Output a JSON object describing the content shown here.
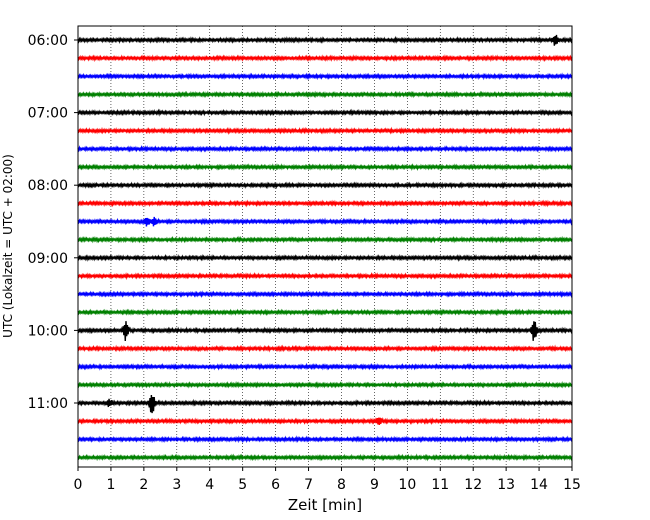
{
  "chart_data": {
    "type": "line",
    "title": "",
    "xlabel": "Zeit  [min]",
    "ylabel": "UTC (Lokalzeit = UTC + 02:00)",
    "xlim": [
      0,
      15
    ],
    "x_ticks": [
      0,
      1,
      2,
      3,
      4,
      5,
      6,
      7,
      8,
      9,
      10,
      11,
      12,
      13,
      14,
      15
    ],
    "y_ticks": [
      "06:00",
      "07:00",
      "08:00",
      "09:00",
      "10:00",
      "11:00"
    ],
    "grid": {
      "vertical": true,
      "horizontal": false,
      "style": "dotted"
    },
    "trace_colors": [
      "#000000",
      "#ff0000",
      "#0000ff",
      "#008000"
    ],
    "traces": [
      {
        "start": "06:00",
        "color": "#000000"
      },
      {
        "start": "06:15",
        "color": "#ff0000"
      },
      {
        "start": "06:30",
        "color": "#0000ff"
      },
      {
        "start": "06:45",
        "color": "#008000"
      },
      {
        "start": "07:00",
        "color": "#000000"
      },
      {
        "start": "07:15",
        "color": "#ff0000"
      },
      {
        "start": "07:30",
        "color": "#0000ff"
      },
      {
        "start": "07:45",
        "color": "#008000"
      },
      {
        "start": "08:00",
        "color": "#000000"
      },
      {
        "start": "08:15",
        "color": "#ff0000"
      },
      {
        "start": "08:30",
        "color": "#0000ff"
      },
      {
        "start": "08:45",
        "color": "#008000"
      },
      {
        "start": "09:00",
        "color": "#000000"
      },
      {
        "start": "09:15",
        "color": "#ff0000"
      },
      {
        "start": "09:30",
        "color": "#0000ff"
      },
      {
        "start": "09:45",
        "color": "#008000"
      },
      {
        "start": "10:00",
        "color": "#000000"
      },
      {
        "start": "10:15",
        "color": "#ff0000"
      },
      {
        "start": "10:30",
        "color": "#0000ff"
      },
      {
        "start": "10:45",
        "color": "#008000"
      },
      {
        "start": "11:00",
        "color": "#000000"
      },
      {
        "start": "11:15",
        "color": "#ff0000"
      },
      {
        "start": "11:30",
        "color": "#0000ff"
      },
      {
        "start": "11:45",
        "color": "#008000"
      }
    ],
    "events": [
      {
        "trace": "06:00",
        "minute": 14.5,
        "amplitude": "medium"
      },
      {
        "trace": "08:30",
        "minute": 2.1,
        "amplitude": "small"
      },
      {
        "trace": "08:30",
        "minute": 2.3,
        "amplitude": "small"
      },
      {
        "trace": "10:00",
        "minute": 1.45,
        "amplitude": "large"
      },
      {
        "trace": "10:00",
        "minute": 13.85,
        "amplitude": "large"
      },
      {
        "trace": "11:00",
        "minute": 0.95,
        "amplitude": "small"
      },
      {
        "trace": "11:00",
        "minute": 2.25,
        "amplitude": "large"
      },
      {
        "trace": "11:15",
        "minute": 9.15,
        "amplitude": "small"
      }
    ]
  }
}
